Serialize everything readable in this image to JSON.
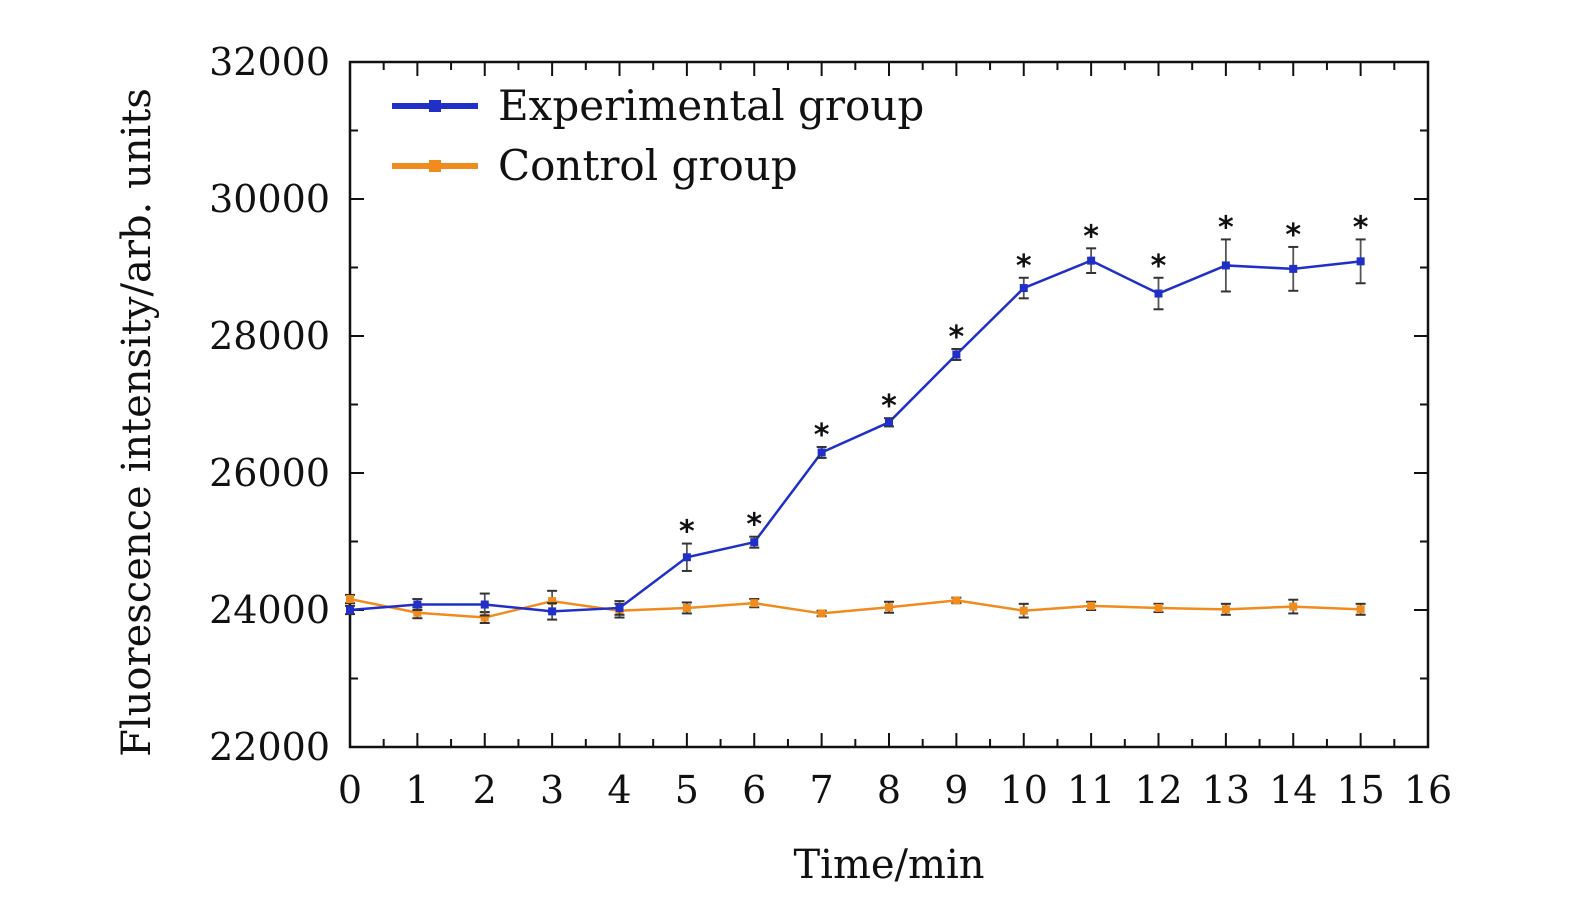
{
  "chart_data": {
    "type": "line",
    "title": "",
    "xlabel": "Time/min",
    "ylabel": "Fluorescence intensity/arb. units",
    "xlim": [
      0,
      16
    ],
    "ylim": [
      22000,
      32000
    ],
    "x_ticks": [
      0,
      1,
      2,
      3,
      4,
      5,
      6,
      7,
      8,
      9,
      10,
      11,
      12,
      13,
      14,
      15,
      16
    ],
    "y_ticks": [
      22000,
      24000,
      26000,
      28000,
      30000,
      32000
    ],
    "x_minor_step": 0.5,
    "y_minor_step": 1000,
    "grid": false,
    "legend_position": "top-left",
    "x": [
      0,
      1,
      2,
      3,
      4,
      5,
      6,
      7,
      8,
      9,
      10,
      11,
      12,
      13,
      14,
      15
    ],
    "series": [
      {
        "name": "Experimental group",
        "color": "#1f2fc8",
        "values": [
          24000,
          24080,
          24080,
          23980,
          24030,
          24770,
          24990,
          26300,
          26740,
          27730,
          28700,
          29100,
          28620,
          29030,
          28980,
          29090
        ],
        "errors": [
          60,
          80,
          160,
          120,
          100,
          200,
          80,
          80,
          60,
          80,
          150,
          180,
          230,
          380,
          320,
          320
        ],
        "significance": [
          false,
          false,
          false,
          false,
          false,
          true,
          true,
          true,
          true,
          true,
          true,
          true,
          true,
          true,
          true,
          true
        ],
        "significance_marker": "*"
      },
      {
        "name": "Control group",
        "color": "#f08c1e",
        "values": [
          24160,
          23960,
          23890,
          24130,
          23990,
          24030,
          24100,
          23950,
          24040,
          24140,
          23990,
          24060,
          24030,
          24010,
          24050,
          24010
        ],
        "errors": [
          60,
          80,
          80,
          150,
          100,
          80,
          60,
          40,
          80,
          40,
          100,
          60,
          60,
          80,
          100,
          80
        ]
      }
    ]
  }
}
